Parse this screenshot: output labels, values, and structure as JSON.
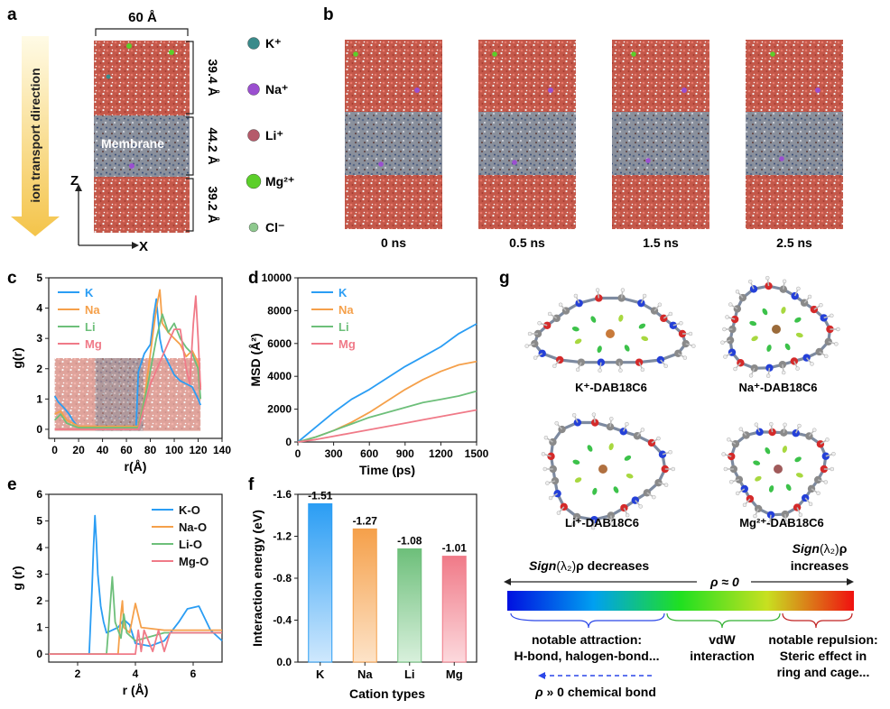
{
  "panel_labels": {
    "a": "a",
    "b": "b",
    "c": "c",
    "d": "d",
    "e": "e",
    "f": "f",
    "g": "g"
  },
  "panel_a": {
    "width_label": "60 Å",
    "region_labels": [
      "39.4 Å",
      "44.2 Å",
      "39.2 Å"
    ],
    "membrane_label": "Membrane",
    "transport_label": "ion transport direction",
    "axis_z": "Z",
    "axis_x": "X",
    "legend": [
      {
        "label": "K⁺",
        "color": "#3a8a8a"
      },
      {
        "label": "Na⁺",
        "color": "#9b4fd0"
      },
      {
        "label": "Li⁺",
        "color": "#b55a6a"
      },
      {
        "label": "Mg²⁺",
        "color": "#5ccf2a"
      },
      {
        "label": "Cl⁻",
        "color": "#8ec98e"
      }
    ]
  },
  "panel_b": {
    "times": [
      "0 ns",
      "0.5 ns",
      "1.5 ns",
      "2.5 ns"
    ]
  },
  "colors": {
    "K": "#2a9df4",
    "Na": "#f5a04a",
    "Li": "#6dbf7a",
    "Mg": "#f07a88"
  },
  "chart_data": [
    {
      "panel": "c",
      "type": "line",
      "xlabel": "r(Å)",
      "ylabel": "g(r)",
      "xlim": [
        -5,
        140
      ],
      "ylim": [
        -0.3,
        5
      ],
      "xticks": [
        0,
        20,
        40,
        60,
        80,
        100,
        120,
        140
      ],
      "yticks": [
        0,
        1,
        2,
        3,
        4,
        5
      ],
      "legend_position": "top-left",
      "series": [
        {
          "name": "K",
          "color": "#2a9df4",
          "x": [
            0,
            3,
            8,
            12,
            15,
            18,
            22,
            68,
            70,
            75,
            80,
            83,
            85,
            88,
            90,
            95,
            100,
            105,
            110,
            115,
            120,
            122
          ],
          "y": [
            1.1,
            0.9,
            0.7,
            0.5,
            0.3,
            0.15,
            0.05,
            0.05,
            1.9,
            2.5,
            2.8,
            3.8,
            4.3,
            3.0,
            2.6,
            2.2,
            1.8,
            1.6,
            1.5,
            1.4,
            1.0,
            0.8
          ]
        },
        {
          "name": "Na",
          "color": "#f5a04a",
          "x": [
            0,
            5,
            10,
            20,
            70,
            75,
            80,
            85,
            88,
            90,
            95,
            100,
            105,
            110,
            115,
            120,
            122
          ],
          "y": [
            0.5,
            0.6,
            0.3,
            0.1,
            0.1,
            1.0,
            2.5,
            4.0,
            4.6,
            3.5,
            3.2,
            3.0,
            2.8,
            2.4,
            2.6,
            2.2,
            1.4
          ]
        },
        {
          "name": "Li",
          "color": "#6dbf7a",
          "x": [
            0,
            5,
            10,
            20,
            70,
            78,
            85,
            90,
            95,
            100,
            105,
            110,
            115,
            120,
            122
          ],
          "y": [
            0.3,
            0.5,
            0.2,
            0.05,
            0.05,
            1.5,
            3.0,
            3.8,
            3.2,
            3.5,
            3.0,
            2.7,
            2.5,
            2.0,
            1.0
          ]
        },
        {
          "name": "Mg",
          "color": "#f07a88",
          "x": [
            0,
            10,
            70,
            80,
            90,
            100,
            105,
            110,
            113,
            116,
            118,
            120,
            122
          ],
          "y": [
            0,
            0,
            0,
            1.5,
            2.4,
            3.3,
            3.3,
            2.0,
            1.5,
            3.5,
            4.4,
            3.0,
            1.3
          ]
        }
      ]
    },
    {
      "panel": "d",
      "type": "line",
      "xlabel": "Time (ps)",
      "ylabel": "MSD (Å²)",
      "xlim": [
        0,
        1500
      ],
      "ylim": [
        0,
        10000
      ],
      "xticks": [
        0,
        300,
        600,
        900,
        1200,
        1500
      ],
      "yticks": [
        0,
        2000,
        4000,
        6000,
        8000,
        10000
      ],
      "legend_position": "top-left",
      "series": [
        {
          "name": "K",
          "color": "#2a9df4",
          "x": [
            0,
            150,
            300,
            450,
            600,
            750,
            900,
            1050,
            1200,
            1350,
            1500
          ],
          "y": [
            0,
            900,
            1800,
            2600,
            3200,
            3900,
            4600,
            5200,
            5800,
            6600,
            7200
          ]
        },
        {
          "name": "Na",
          "color": "#f5a04a",
          "x": [
            0,
            150,
            300,
            450,
            600,
            750,
            900,
            1050,
            1200,
            1350,
            1500
          ],
          "y": [
            0,
            300,
            700,
            1200,
            1800,
            2500,
            3200,
            3800,
            4300,
            4700,
            4900
          ]
        },
        {
          "name": "Li",
          "color": "#6dbf7a",
          "x": [
            0,
            150,
            300,
            450,
            600,
            750,
            900,
            1050,
            1200,
            1350,
            1500
          ],
          "y": [
            0,
            300,
            700,
            1100,
            1500,
            1800,
            2100,
            2400,
            2600,
            2800,
            3100
          ]
        },
        {
          "name": "Mg",
          "color": "#f07a88",
          "x": [
            0,
            150,
            300,
            450,
            600,
            750,
            900,
            1050,
            1200,
            1350,
            1500
          ],
          "y": [
            0,
            150,
            350,
            550,
            750,
            950,
            1150,
            1350,
            1550,
            1750,
            1950
          ]
        }
      ]
    },
    {
      "panel": "e",
      "type": "line",
      "xlabel": "r (Å)",
      "ylabel": "g (r)",
      "xlim": [
        1,
        7
      ],
      "ylim": [
        -0.3,
        6
      ],
      "xticks": [
        2,
        4,
        6
      ],
      "yticks": [
        0,
        1,
        2,
        3,
        4,
        5,
        6
      ],
      "legend_position": "top-right",
      "series": [
        {
          "name": "K-O",
          "color": "#2a9df4",
          "x": [
            1,
            2.4,
            2.5,
            2.55,
            2.6,
            2.65,
            2.7,
            2.8,
            2.9,
            3.0,
            3.2,
            3.4,
            3.6,
            3.8,
            4.0,
            4.5,
            5.0,
            5.5,
            5.8,
            6.2,
            6.6,
            7.0
          ],
          "y": [
            0,
            0,
            2.5,
            4.0,
            5.2,
            4.2,
            3.0,
            1.8,
            1.2,
            0.8,
            0.9,
            1.0,
            1.3,
            1.1,
            0.4,
            0.3,
            0.5,
            1.2,
            1.7,
            1.8,
            0.9,
            0.5
          ]
        },
        {
          "name": "Na-O",
          "color": "#f5a04a",
          "x": [
            1,
            3.4,
            3.5,
            3.55,
            3.6,
            3.8,
            4.0,
            4.2,
            5.0,
            6.0,
            7.0
          ],
          "y": [
            0,
            0,
            1.5,
            2.0,
            1.0,
            0.8,
            1.9,
            1.0,
            0.9,
            0.9,
            0.9
          ]
        },
        {
          "name": "Li-O",
          "color": "#6dbf7a",
          "x": [
            1,
            3.0,
            3.1,
            3.2,
            3.3,
            3.5,
            3.6,
            3.7,
            4.0,
            5.0,
            6.0,
            7.0
          ],
          "y": [
            0,
            0,
            1.4,
            2.9,
            1.2,
            0.6,
            1.5,
            0.8,
            0.5,
            0.8,
            0.8,
            0.8
          ]
        },
        {
          "name": "Mg-O",
          "color": "#f07a88",
          "x": [
            1,
            4.0,
            4.1,
            4.2,
            4.3,
            4.6,
            4.8,
            5.0,
            5.2,
            6.0,
            7.0
          ],
          "y": [
            0,
            0,
            0.9,
            0.1,
            0.9,
            0.1,
            0.9,
            0.1,
            0.8,
            0.8,
            0.8
          ]
        }
      ]
    },
    {
      "panel": "f",
      "type": "bar",
      "xlabel": "Cation types",
      "ylabel": "Interaction energy (eV)",
      "categories": [
        "K",
        "Na",
        "Li",
        "Mg"
      ],
      "values": [
        -1.51,
        -1.27,
        -1.08,
        -1.01
      ],
      "value_labels": [
        "-1.51",
        "-1.27",
        "-1.08",
        "-1.01"
      ],
      "ylim": [
        0,
        -1.6
      ],
      "yticks": [
        "0.0",
        "-0.4",
        "-0.8",
        "-1.2",
        "-1.6"
      ],
      "colors": [
        "#2a9df4",
        "#f5a04a",
        "#6dbf7a",
        "#f07a88"
      ]
    }
  ],
  "panel_g": {
    "complexes": [
      "K⁺-DAB18C6",
      "Na⁺-DAB18C6",
      "Li⁺-DAB18C6",
      "Mg²⁺-DAB18C6"
    ],
    "scale": {
      "left_prefix": "Sign",
      "left_suffix": "ρ decreases",
      "right_prefix": "Sign",
      "right_suffix": "ρ",
      "right_line2": "increases",
      "center": "ρ ≈ 0",
      "lambda": "(λ₂)",
      "bracket1_line1": "notable attraction:",
      "bracket1_line2": "H-bond, halogen-bond...",
      "bracket2_line1": "vdW",
      "bracket2_line2": "interaction",
      "bracket3_line1": "notable repulsion:",
      "bracket3_line2": "Steric effect in",
      "bracket3_line3": "ring and cage...",
      "chem_bond": "ρ » 0 chemical bond"
    }
  }
}
